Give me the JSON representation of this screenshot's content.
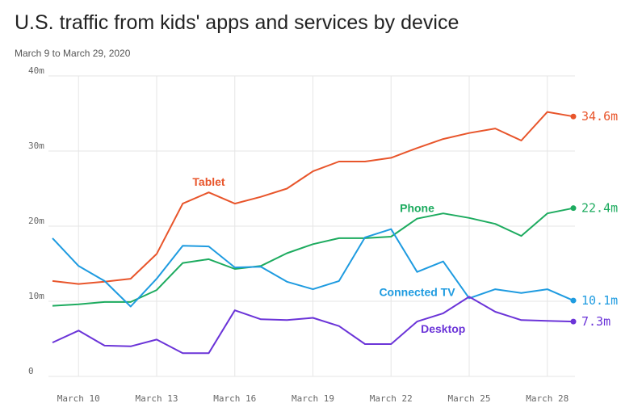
{
  "header": {
    "title": "U.S. traffic from kids' apps and services by device",
    "subtitle": "March 9 to March 29, 2020"
  },
  "chart_data": {
    "type": "line",
    "title": "U.S. traffic from kids' apps and services by device",
    "subtitle": "March 9 to March 29, 2020",
    "xlabel": "",
    "ylabel": "",
    "x": [
      "March 9",
      "March 10",
      "March 11",
      "March 12",
      "March 13",
      "March 14",
      "March 15",
      "March 16",
      "March 17",
      "March 18",
      "March 19",
      "March 20",
      "March 21",
      "March 22",
      "March 23",
      "March 24",
      "March 25",
      "March 26",
      "March 27",
      "March 28",
      "March 29"
    ],
    "x_ticks": [
      "March 10",
      "March 13",
      "March 16",
      "March 19",
      "March 22",
      "March 25",
      "March 28"
    ],
    "y_ticks": [
      {
        "value": 0,
        "label": "0"
      },
      {
        "value": 10,
        "label": "10m"
      },
      {
        "value": 20,
        "label": "20m"
      },
      {
        "value": 30,
        "label": "30m"
      },
      {
        "value": 40,
        "label": "40m"
      }
    ],
    "ylim": [
      0,
      40
    ],
    "grid": true,
    "series": [
      {
        "name": "Tablet",
        "color": "#e8552b",
        "end_label": "34.6m",
        "values": [
          12.7,
          12.3,
          12.6,
          13.0,
          16.3,
          23.0,
          24.5,
          23.0,
          23.9,
          25.0,
          27.3,
          28.6,
          28.6,
          29.1,
          30.4,
          31.6,
          32.4,
          33.0,
          31.4,
          35.2,
          34.6
        ]
      },
      {
        "name": "Phone",
        "color": "#1dab5f",
        "end_label": "22.4m",
        "values": [
          9.4,
          9.6,
          9.9,
          9.9,
          11.5,
          15.1,
          15.6,
          14.3,
          14.7,
          16.4,
          17.6,
          18.4,
          18.4,
          18.6,
          21.0,
          21.7,
          21.1,
          20.3,
          18.7,
          21.7,
          22.4
        ]
      },
      {
        "name": "Connected TV",
        "color": "#1e9be0",
        "end_label": "10.1m",
        "values": [
          18.4,
          14.7,
          12.7,
          9.3,
          13.0,
          17.4,
          17.3,
          14.5,
          14.6,
          12.6,
          11.6,
          12.7,
          18.5,
          19.6,
          13.9,
          15.3,
          10.4,
          11.6,
          11.1,
          11.6,
          10.1
        ]
      },
      {
        "name": "Desktop",
        "color": "#6b34d8",
        "end_label": "7.3m",
        "values": [
          4.5,
          6.1,
          4.1,
          4.0,
          4.9,
          3.1,
          3.1,
          8.8,
          7.6,
          7.5,
          7.8,
          6.7,
          4.3,
          4.3,
          7.3,
          8.4,
          10.6,
          8.6,
          7.5,
          7.4,
          7.3
        ]
      }
    ]
  }
}
